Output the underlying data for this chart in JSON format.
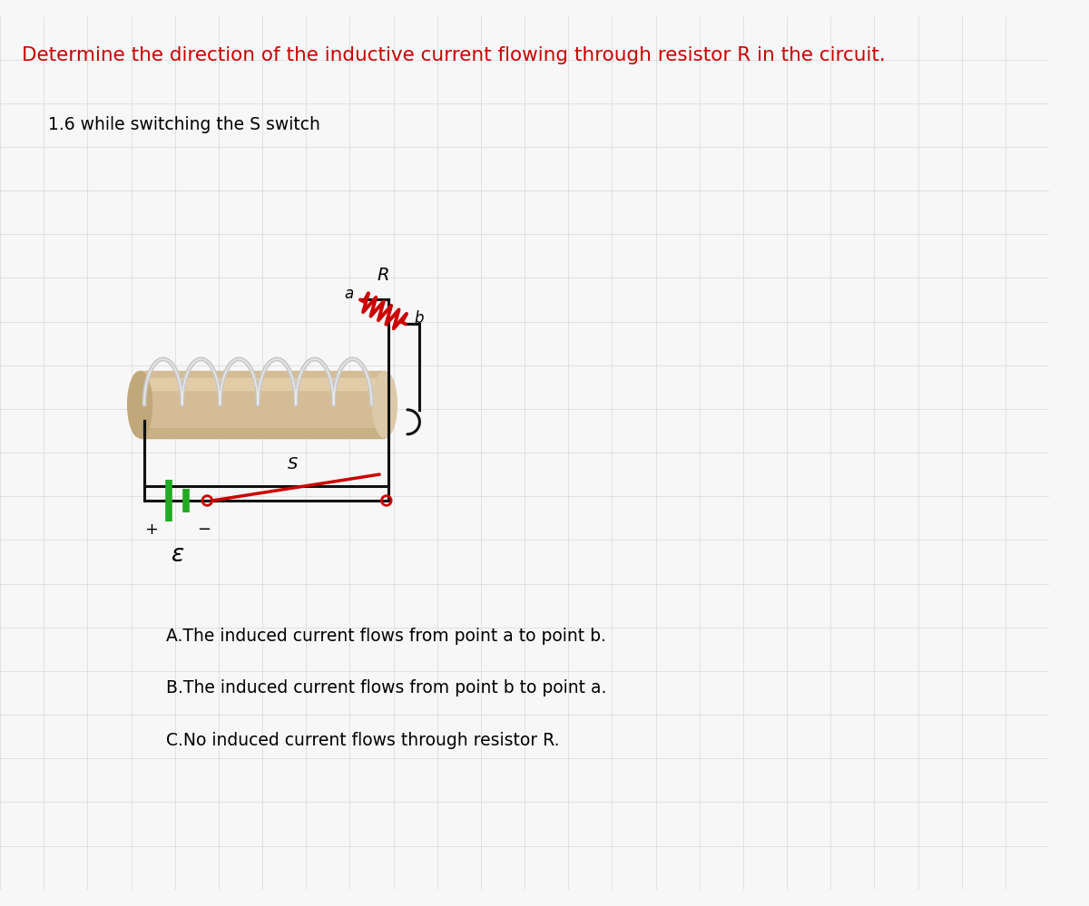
{
  "title": "Determine the direction of the inductive current flowing through resistor R in the circuit.",
  "subtitle": "1.6 while switching the S switch",
  "title_color": "#cc0000",
  "subtitle_color": "#000000",
  "bg_color": "#f7f7f7",
  "grid_color": "#d8d8d8",
  "answer_a": "A.The induced current flows from point a to point b.",
  "answer_b": "B.The induced current flows from point b to point a.",
  "answer_c": "C.No induced current flows through resistor R.",
  "coil_body_color": "#d4bc96",
  "coil_body_shadow": "#c0a87a",
  "coil_body_highlight": "#e8d4b0",
  "coil_wire_color": "#c8c8c8",
  "coil_wire_shadow": "#888888",
  "resistor_color": "#cc0000",
  "switch_color": "#cc0000",
  "battery_green": "#22aa22",
  "wire_color": "#111111",
  "switch_contact_color": "#cc0000"
}
